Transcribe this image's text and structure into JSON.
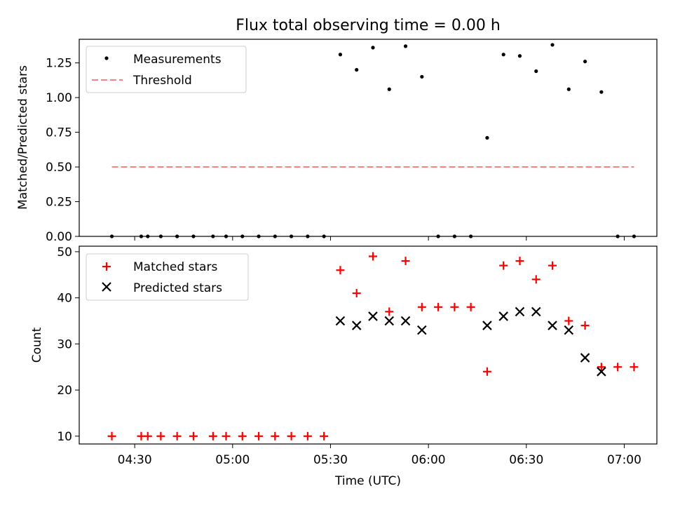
{
  "title": "Flux total observing time = 0.00 h",
  "top_panel": {
    "ylabel": "Matched/Predicted stars",
    "yticks": [
      "0.00",
      "0.25",
      "0.50",
      "0.75",
      "1.00",
      "1.25"
    ],
    "legend": {
      "measurements": "Measurements",
      "threshold": "Threshold"
    }
  },
  "bottom_panel": {
    "ylabel": "Count",
    "xlabel": "Time (UTC)",
    "yticks": [
      "10",
      "20",
      "30",
      "40",
      "50"
    ],
    "xticks": [
      "04:30",
      "05:00",
      "05:30",
      "06:00",
      "06:30",
      "07:00"
    ],
    "legend": {
      "matched": "Matched stars",
      "predicted": "Predicted stars"
    }
  },
  "colors": {
    "measurements": "#000000",
    "threshold": "#ff7f7f",
    "matched": "#ff0000",
    "predicted": "#000000"
  },
  "chart_data": [
    {
      "type": "scatter",
      "title": "Flux total observing time = 0.00 h",
      "xlabel": "",
      "ylabel": "Matched/Predicted stars",
      "xlim": [
        "04:13",
        "07:10"
      ],
      "ylim": [
        0,
        1.42
      ],
      "legend_position": "top-left",
      "series": [
        {
          "name": "Measurements",
          "marker": "dot",
          "points": [
            [
              "04:23",
              0
            ],
            [
              "04:32",
              0
            ],
            [
              "04:34",
              0
            ],
            [
              "04:38",
              0
            ],
            [
              "04:43",
              0
            ],
            [
              "04:48",
              0
            ],
            [
              "04:54",
              0
            ],
            [
              "04:58",
              0
            ],
            [
              "05:03",
              0
            ],
            [
              "05:08",
              0
            ],
            [
              "05:13",
              0
            ],
            [
              "05:18",
              0
            ],
            [
              "05:23",
              0
            ],
            [
              "05:28",
              0
            ],
            [
              "05:33",
              1.31
            ],
            [
              "05:38",
              1.2
            ],
            [
              "05:43",
              1.36
            ],
            [
              "05:48",
              1.06
            ],
            [
              "05:53",
              1.37
            ],
            [
              "05:58",
              1.15
            ],
            [
              "06:03",
              0
            ],
            [
              "06:08",
              0
            ],
            [
              "06:13",
              0
            ],
            [
              "06:18",
              0.71
            ],
            [
              "06:23",
              1.31
            ],
            [
              "06:28",
              1.3
            ],
            [
              "06:33",
              1.19
            ],
            [
              "06:38",
              1.38
            ],
            [
              "06:43",
              1.06
            ],
            [
              "06:48",
              1.26
            ],
            [
              "06:53",
              1.04
            ],
            [
              "06:58",
              0
            ],
            [
              "07:03",
              0
            ]
          ]
        },
        {
          "name": "Threshold",
          "type": "line",
          "style": "dashed",
          "points": [
            [
              "04:23",
              0.5
            ],
            [
              "07:03",
              0.5
            ]
          ]
        }
      ]
    },
    {
      "type": "scatter",
      "title": "",
      "xlabel": "Time (UTC)",
      "ylabel": "Count",
      "xlim": [
        "04:13",
        "07:10"
      ],
      "ylim": [
        8.3,
        51.2
      ],
      "legend_position": "top-left",
      "series": [
        {
          "name": "Matched stars",
          "marker": "plus",
          "points": [
            [
              "04:23",
              10
            ],
            [
              "04:32",
              10
            ],
            [
              "04:34",
              10
            ],
            [
              "04:38",
              10
            ],
            [
              "04:43",
              10
            ],
            [
              "04:48",
              10
            ],
            [
              "04:54",
              10
            ],
            [
              "04:58",
              10
            ],
            [
              "05:03",
              10
            ],
            [
              "05:08",
              10
            ],
            [
              "05:13",
              10
            ],
            [
              "05:18",
              10
            ],
            [
              "05:23",
              10
            ],
            [
              "05:28",
              10
            ],
            [
              "05:33",
              46
            ],
            [
              "05:38",
              41
            ],
            [
              "05:43",
              49
            ],
            [
              "05:48",
              37
            ],
            [
              "05:53",
              48
            ],
            [
              "05:58",
              38
            ],
            [
              "06:03",
              38
            ],
            [
              "06:08",
              38
            ],
            [
              "06:13",
              38
            ],
            [
              "06:18",
              24
            ],
            [
              "06:23",
              47
            ],
            [
              "06:28",
              48
            ],
            [
              "06:33",
              44
            ],
            [
              "06:38",
              47
            ],
            [
              "06:43",
              35
            ],
            [
              "06:48",
              34
            ],
            [
              "06:53",
              25
            ],
            [
              "06:58",
              25
            ],
            [
              "07:03",
              25
            ]
          ]
        },
        {
          "name": "Predicted stars",
          "marker": "x",
          "points": [
            [
              "05:33",
              35
            ],
            [
              "05:38",
              34
            ],
            [
              "05:43",
              36
            ],
            [
              "05:48",
              35
            ],
            [
              "05:53",
              35
            ],
            [
              "05:58",
              33
            ],
            [
              "06:18",
              34
            ],
            [
              "06:23",
              36
            ],
            [
              "06:28",
              37
            ],
            [
              "06:33",
              37
            ],
            [
              "06:38",
              34
            ],
            [
              "06:43",
              33
            ],
            [
              "06:48",
              27
            ],
            [
              "06:53",
              24
            ]
          ]
        }
      ]
    }
  ]
}
